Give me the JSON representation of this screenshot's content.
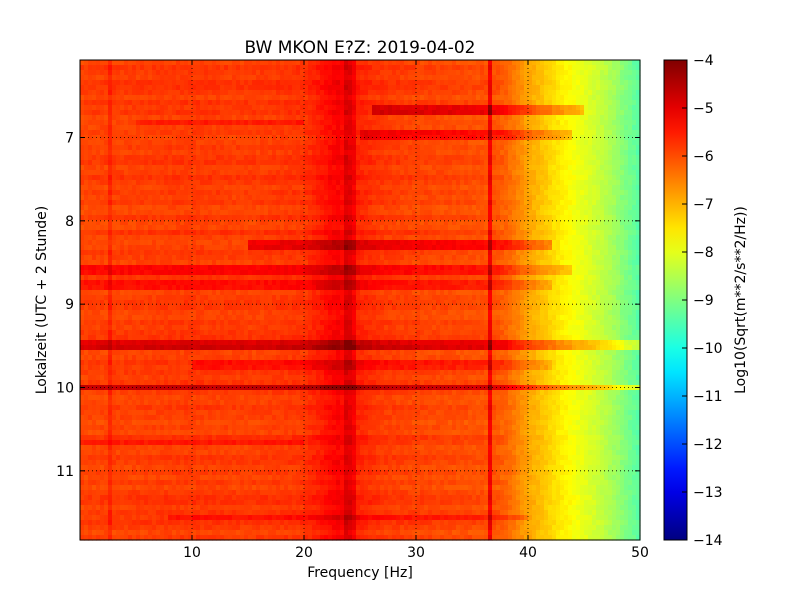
{
  "chart_data": {
    "type": "heatmap",
    "title": "BW MKON E?Z: 2019-04-02",
    "xlabel": "Frequency [Hz]",
    "ylabel": "Lokalzeit (UTC + 2 Stunde)",
    "xlim": [
      0,
      50
    ],
    "ylim": [
      6.07,
      11.83
    ],
    "y_inverted": true,
    "x_ticks": [
      10,
      20,
      30,
      40,
      50
    ],
    "y_ticks": [
      7,
      8,
      9,
      10,
      11
    ],
    "grid": true,
    "colorbar": {
      "label": "Log10(Sqrt(m**2/s**2/Hz))",
      "range": [
        -14,
        -4
      ],
      "ticks": [
        -4,
        -5,
        -6,
        -7,
        -8,
        -9,
        -10,
        -11,
        -12,
        -13,
        -14
      ],
      "colormap": "jet"
    },
    "x_profile": {
      "frequency_hz": [
        0,
        5,
        10,
        15,
        20,
        23,
        25,
        27,
        30,
        33,
        35,
        37,
        38,
        39,
        40,
        41,
        42,
        43,
        44,
        45,
        46,
        47,
        48,
        49,
        50
      ],
      "log10_amplitude": [
        -5.9,
        -5.85,
        -5.8,
        -5.85,
        -5.75,
        -5.2,
        -5.6,
        -5.8,
        -5.9,
        -5.95,
        -6.0,
        -6.05,
        -6.2,
        -6.5,
        -6.85,
        -7.1,
        -7.35,
        -7.6,
        -7.8,
        -8.0,
        -8.2,
        -8.45,
        -8.75,
        -9.1,
        -9.4
      ]
    },
    "features": {
      "vertical_lines": [
        {
          "freq_hz": 2.7,
          "delta": 0.3
        },
        {
          "freq_hz": 23.9,
          "delta": 0.45
        },
        {
          "freq_hz": 24.5,
          "delta": 0.35
        },
        {
          "freq_hz": 36.6,
          "delta": 0.9
        }
      ],
      "horizontal_bands": [
        {
          "time": 6.67,
          "f_start": 26,
          "f_end": 45,
          "delta": 0.9
        },
        {
          "time": 6.82,
          "f_start": 5,
          "f_end": 20,
          "delta": 0.35
        },
        {
          "time": 6.96,
          "f_start": 25,
          "f_end": 44,
          "delta": 0.7
        },
        {
          "time": 8.28,
          "f_start": 15,
          "f_end": 42,
          "delta": 0.8
        },
        {
          "time": 8.6,
          "f_start": 0,
          "f_end": 44,
          "delta": 0.5
        },
        {
          "time": 8.78,
          "f_start": 0,
          "f_end": 42,
          "delta": 0.45
        },
        {
          "time": 9.5,
          "f_start": 0,
          "f_end": 50,
          "delta": 1.0
        },
        {
          "time": 9.72,
          "f_start": 10,
          "f_end": 42,
          "delta": 0.4
        },
        {
          "time": 9.99,
          "f_start": 0,
          "f_end": 50,
          "delta": 1.1
        },
        {
          "time": 10.65,
          "f_start": 0,
          "f_end": 20,
          "delta": 0.3
        },
        {
          "time": 11.55,
          "f_start": 8,
          "f_end": 40,
          "delta": 0.4
        }
      ]
    }
  }
}
